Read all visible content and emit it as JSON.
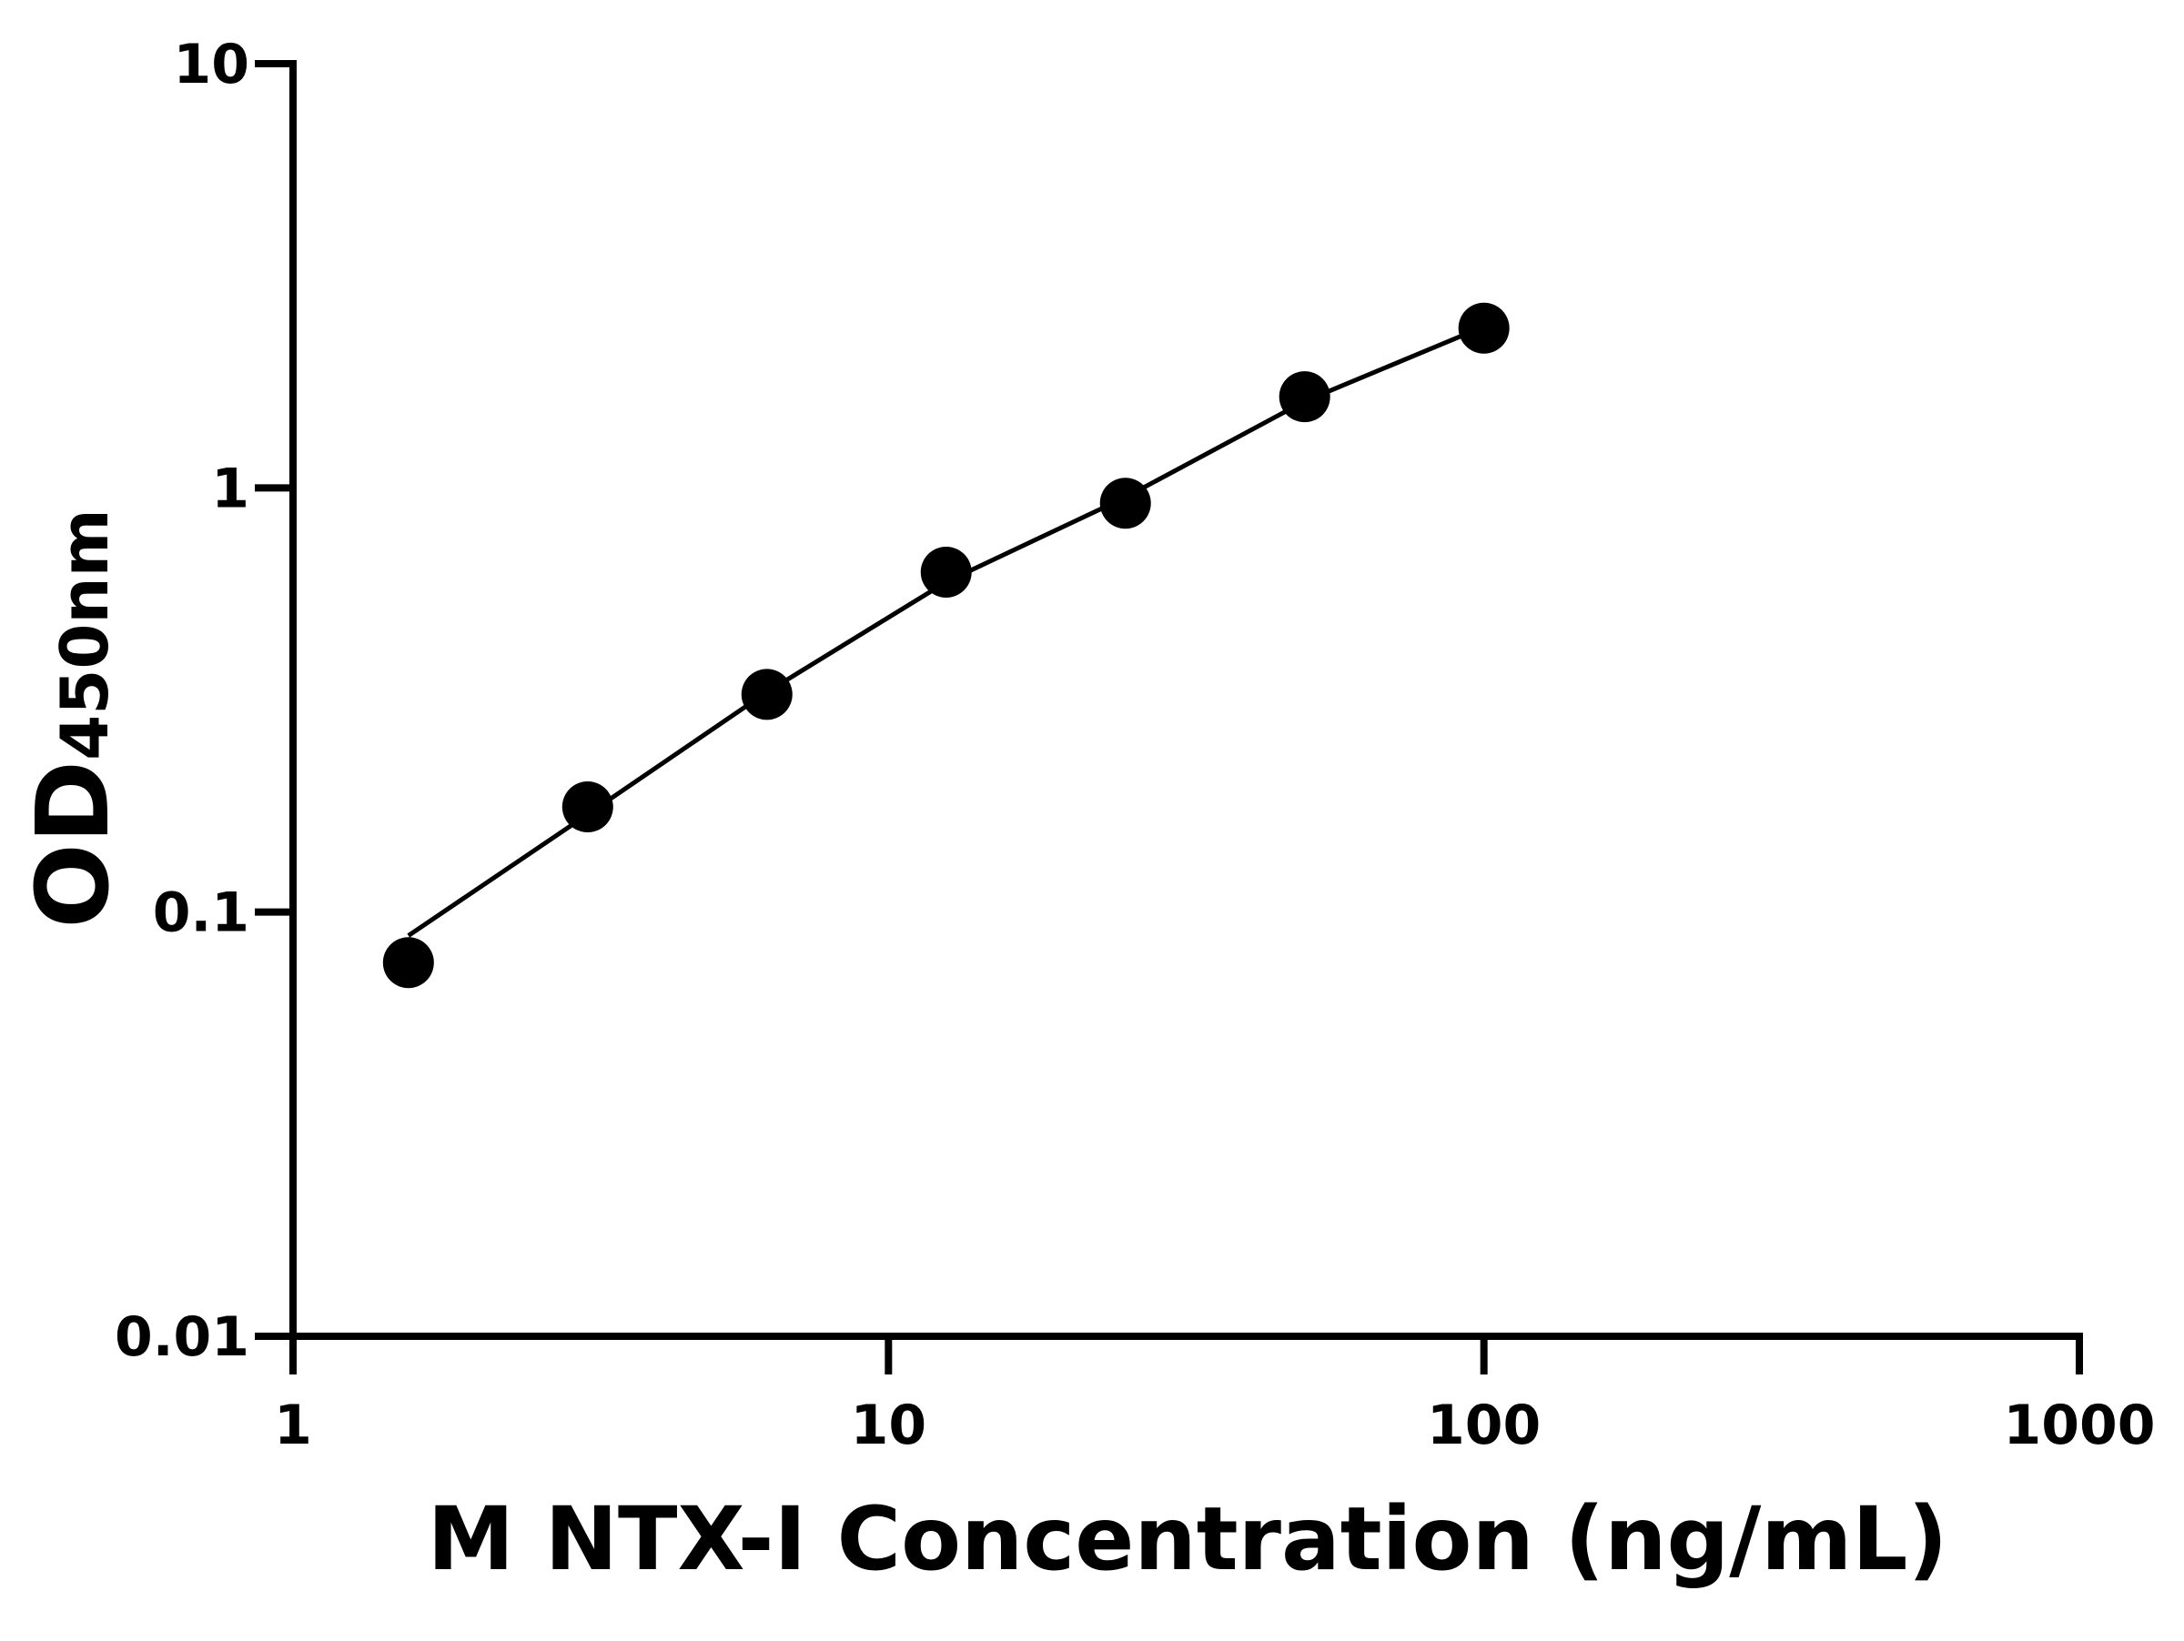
{
  "chart_data": {
    "type": "scatter",
    "x_label": "M NTX-I Concentration (ng/mL)",
    "y_label": "OD",
    "y_label_sub": "450nm",
    "x": [
      1.5625,
      3.125,
      6.25,
      12.5,
      25,
      50,
      100
    ],
    "series": [
      {
        "values": [
          0.076,
          0.177,
          0.326,
          0.633,
          0.92,
          1.64,
          2.38
        ],
        "color": "#000000",
        "mode": "markers"
      },
      {
        "values": [
          0.088,
          0.17,
          0.33,
          0.6,
          0.95,
          1.6,
          2.4
        ],
        "color": "#000000",
        "mode": "line"
      }
    ],
    "xlim": [
      1,
      1000
    ],
    "xticks": [
      1,
      10,
      100,
      1000
    ],
    "ylim": [
      0.01,
      10
    ],
    "yticks": [
      0.01,
      0.1,
      1,
      10
    ],
    "xscale": "log",
    "yscale": "log"
  }
}
